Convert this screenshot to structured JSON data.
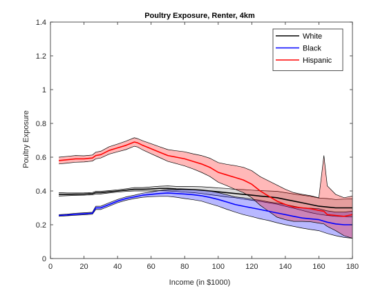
{
  "chart_data": {
    "type": "line",
    "title": "Poultry Exposure, Renter, 4km",
    "xlabel": "Income (in $1000)",
    "ylabel": "Poultry Exposure",
    "xlim": [
      0,
      180
    ],
    "ylim": [
      0,
      1.4
    ],
    "x_ticks": [
      0,
      20,
      40,
      60,
      80,
      100,
      120,
      140,
      160,
      180
    ],
    "y_ticks": [
      0,
      0.2,
      0.4,
      0.6,
      0.8,
      1,
      1.2,
      1.4
    ],
    "x_tick_labels": [
      "0",
      "20",
      "40",
      "60",
      "80",
      "100",
      "120",
      "140",
      "160",
      "180"
    ],
    "y_tick_labels": [
      "0",
      "0.2",
      "0.4",
      "0.6",
      "0.8",
      "1",
      "1.2",
      "1.4"
    ],
    "grid": false,
    "legend_position": "top-right",
    "series": [
      {
        "name": "White",
        "color": "#000000",
        "band_color": "#808080",
        "x": [
          5,
          10,
          15,
          20,
          25,
          27,
          30,
          35,
          40,
          45,
          50,
          55,
          60,
          65,
          70,
          75,
          80,
          85,
          90,
          95,
          100,
          105,
          110,
          115,
          120,
          125,
          130,
          135,
          140,
          145,
          150,
          155,
          160,
          165,
          170,
          175,
          180
        ],
        "y": [
          0.38,
          0.38,
          0.381,
          0.382,
          0.384,
          0.39,
          0.39,
          0.395,
          0.4,
          0.405,
          0.41,
          0.41,
          0.412,
          0.415,
          0.415,
          0.412,
          0.41,
          0.408,
          0.405,
          0.4,
          0.395,
          0.39,
          0.385,
          0.38,
          0.375,
          0.37,
          0.365,
          0.36,
          0.35,
          0.34,
          0.33,
          0.32,
          0.31,
          0.305,
          0.3,
          0.3,
          0.3
        ],
        "lower": [
          0.37,
          0.372,
          0.374,
          0.375,
          0.377,
          0.382,
          0.382,
          0.388,
          0.393,
          0.397,
          0.4,
          0.4,
          0.4,
          0.402,
          0.4,
          0.397,
          0.393,
          0.39,
          0.385,
          0.378,
          0.372,
          0.365,
          0.36,
          0.352,
          0.345,
          0.338,
          0.33,
          0.322,
          0.31,
          0.298,
          0.285,
          0.272,
          0.262,
          0.255,
          0.25,
          0.248,
          0.247
        ],
        "upper": [
          0.39,
          0.388,
          0.388,
          0.389,
          0.391,
          0.398,
          0.398,
          0.402,
          0.407,
          0.413,
          0.42,
          0.42,
          0.424,
          0.428,
          0.43,
          0.427,
          0.427,
          0.426,
          0.425,
          0.422,
          0.418,
          0.415,
          0.41,
          0.408,
          0.405,
          0.402,
          0.4,
          0.398,
          0.39,
          0.382,
          0.375,
          0.368,
          0.358,
          0.355,
          0.35,
          0.352,
          0.353
        ]
      },
      {
        "name": "Black",
        "color": "#0000ff",
        "band_color": "#0000ff",
        "x": [
          5,
          10,
          15,
          20,
          25,
          27,
          30,
          35,
          40,
          45,
          50,
          55,
          60,
          65,
          70,
          75,
          80,
          85,
          90,
          95,
          100,
          105,
          110,
          115,
          120,
          125,
          130,
          135,
          140,
          145,
          150,
          155,
          160,
          165,
          170,
          175,
          180
        ],
        "y": [
          0.255,
          0.258,
          0.262,
          0.265,
          0.268,
          0.3,
          0.3,
          0.32,
          0.34,
          0.355,
          0.365,
          0.375,
          0.38,
          0.385,
          0.388,
          0.385,
          0.382,
          0.378,
          0.372,
          0.362,
          0.35,
          0.335,
          0.32,
          0.31,
          0.3,
          0.29,
          0.28,
          0.27,
          0.26,
          0.25,
          0.24,
          0.235,
          0.23,
          0.215,
          0.205,
          0.2,
          0.2
        ],
        "lower": [
          0.25,
          0.253,
          0.256,
          0.259,
          0.262,
          0.29,
          0.29,
          0.31,
          0.33,
          0.345,
          0.355,
          0.363,
          0.366,
          0.368,
          0.368,
          0.363,
          0.355,
          0.348,
          0.34,
          0.325,
          0.31,
          0.292,
          0.275,
          0.26,
          0.248,
          0.235,
          0.225,
          0.212,
          0.2,
          0.19,
          0.18,
          0.172,
          0.165,
          0.148,
          0.135,
          0.125,
          0.12
        ],
        "upper": [
          0.26,
          0.263,
          0.268,
          0.271,
          0.274,
          0.31,
          0.31,
          0.33,
          0.35,
          0.365,
          0.375,
          0.387,
          0.394,
          0.402,
          0.408,
          0.407,
          0.409,
          0.408,
          0.404,
          0.399,
          0.39,
          0.378,
          0.365,
          0.36,
          0.352,
          0.345,
          0.335,
          0.328,
          0.32,
          0.31,
          0.3,
          0.298,
          0.295,
          0.282,
          0.275,
          0.275,
          0.28
        ]
      },
      {
        "name": "Hispanic",
        "color": "#ff0000",
        "band_color": "#ff0000",
        "x": [
          5,
          10,
          15,
          20,
          25,
          27,
          30,
          35,
          40,
          45,
          50,
          52,
          55,
          60,
          65,
          70,
          75,
          80,
          85,
          90,
          95,
          100,
          105,
          110,
          115,
          120,
          125,
          130,
          135,
          140,
          145,
          150,
          155,
          160,
          163,
          165,
          170,
          175,
          180
        ],
        "y": [
          0.58,
          0.585,
          0.59,
          0.59,
          0.595,
          0.61,
          0.615,
          0.64,
          0.655,
          0.67,
          0.69,
          0.685,
          0.67,
          0.65,
          0.63,
          0.61,
          0.6,
          0.59,
          0.575,
          0.56,
          0.54,
          0.51,
          0.495,
          0.48,
          0.465,
          0.44,
          0.4,
          0.37,
          0.34,
          0.32,
          0.305,
          0.3,
          0.295,
          0.285,
          0.28,
          0.26,
          0.255,
          0.25,
          0.26
        ],
        "lower": [
          0.56,
          0.565,
          0.57,
          0.572,
          0.577,
          0.59,
          0.595,
          0.618,
          0.632,
          0.645,
          0.665,
          0.66,
          0.643,
          0.62,
          0.598,
          0.575,
          0.562,
          0.548,
          0.53,
          0.51,
          0.486,
          0.452,
          0.432,
          0.41,
          0.39,
          0.36,
          0.315,
          0.28,
          0.245,
          0.23,
          0.22,
          0.22,
          0.218,
          0.21,
          0.205,
          0.19,
          0.165,
          0.135,
          0.12
        ],
        "upper": [
          0.6,
          0.605,
          0.61,
          0.608,
          0.613,
          0.63,
          0.635,
          0.662,
          0.678,
          0.695,
          0.715,
          0.71,
          0.697,
          0.68,
          0.662,
          0.645,
          0.638,
          0.632,
          0.62,
          0.61,
          0.594,
          0.568,
          0.558,
          0.55,
          0.54,
          0.52,
          0.485,
          0.46,
          0.435,
          0.41,
          0.39,
          0.38,
          0.372,
          0.36,
          0.61,
          0.43,
          0.38,
          0.36,
          0.37
        ]
      }
    ]
  }
}
